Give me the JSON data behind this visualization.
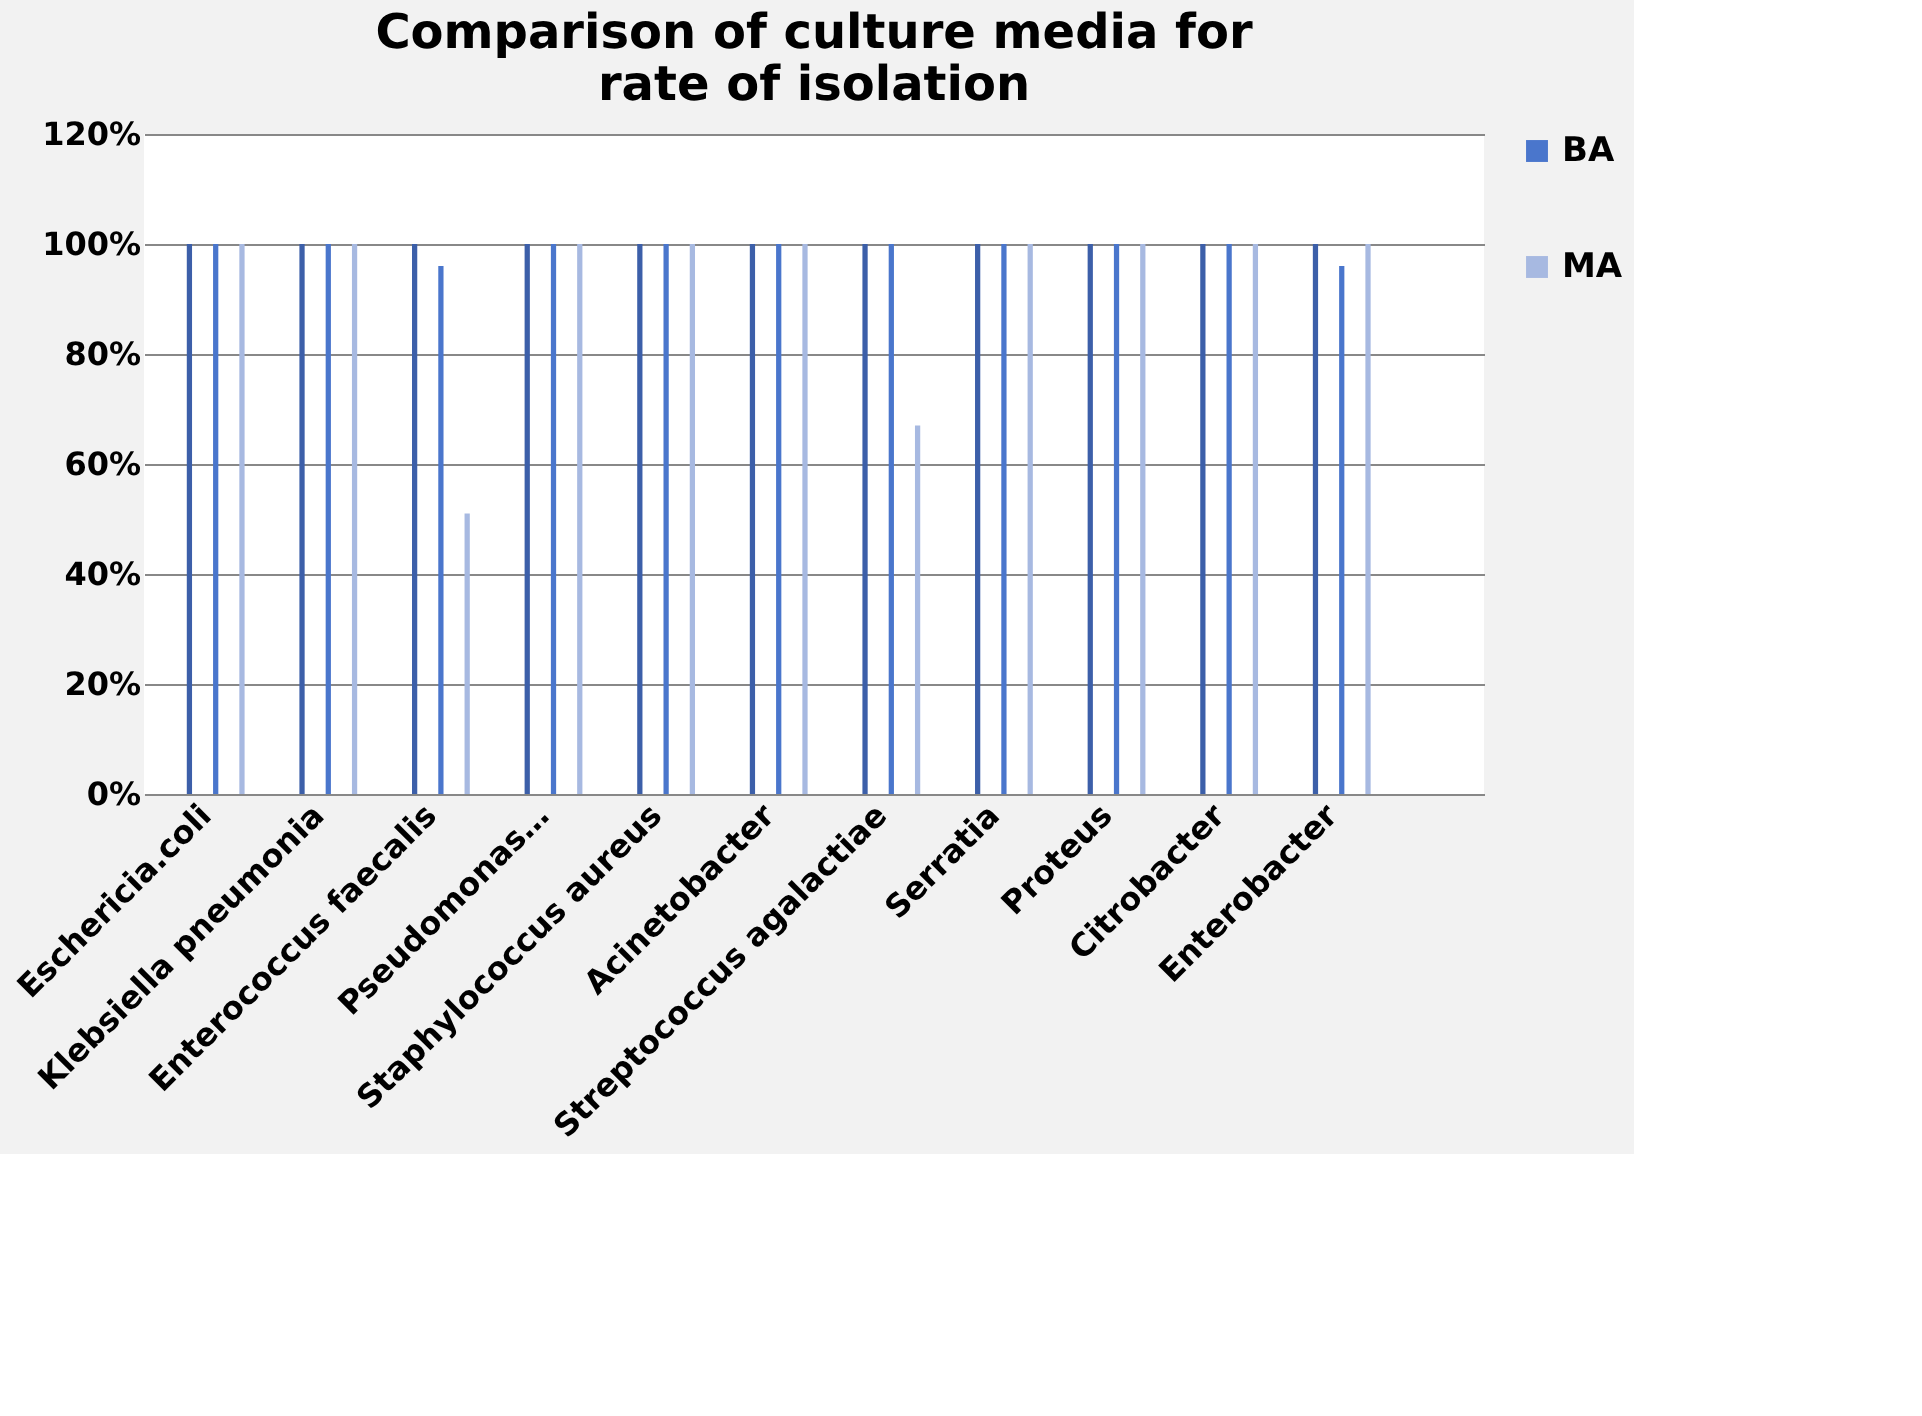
{
  "chart_data": {
    "type": "bar",
    "title": "Comparison of culture media for rate of isolation",
    "categories": [
      "Eschericia.coli",
      "Klebsiella pneumonia",
      "Enterococcus faecalis",
      "Pseudomonas…",
      "Staphylococcus aureus",
      "Acinetobacter",
      "Streptococcus agalactiae",
      "Serratia",
      "Proteus",
      "Citrobacter",
      "Enterobacter",
      null
    ],
    "series": [
      {
        "color": "#3c5fa9",
        "values": [
          100,
          100,
          100,
          100,
          100,
          100,
          100,
          100,
          100,
          100,
          100,
          null
        ]
      },
      {
        "name": "BA",
        "color": "#4a76cc",
        "values": [
          100,
          100,
          96,
          100,
          100,
          100,
          100,
          100,
          100,
          100,
          96,
          null
        ]
      },
      {
        "name": "MA",
        "color": "#a7b9e1",
        "values": [
          100,
          100,
          51,
          100,
          100,
          100,
          67,
          100,
          100,
          100,
          100,
          null
        ]
      }
    ],
    "ylim": [
      0,
      120
    ],
    "yticks": [
      {
        "value": 0,
        "label": "0%"
      },
      {
        "value": 20,
        "label": "20%"
      },
      {
        "value": 40,
        "label": "40%"
      },
      {
        "value": 60,
        "label": "60%"
      },
      {
        "value": 80,
        "label": "80%"
      },
      {
        "value": 100,
        "label": "100%"
      },
      {
        "value": 120,
        "label": "120%"
      }
    ],
    "grid": "y",
    "legend": "right"
  }
}
